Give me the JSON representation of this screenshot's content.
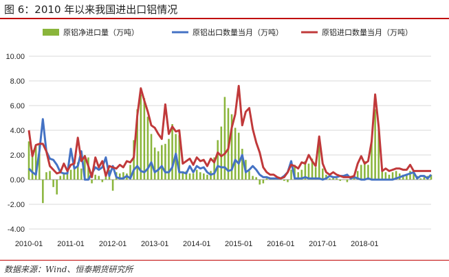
{
  "figure": {
    "title": "图 6：2010 年以来我国进出口铝情况",
    "source": "数据来源：Wind、恒泰期货研究所"
  },
  "chart_data": {
    "type": "bar+line",
    "title": "",
    "xlabel": "",
    "ylabel": "",
    "ylim": [
      -4,
      10
    ],
    "y_ticks": [
      "-4.00",
      "-2.00",
      "0.00",
      "2.00",
      "4.00",
      "6.00",
      "8.00",
      "10.00"
    ],
    "x_ticks": [
      "2010-01",
      "2011-01",
      "2012-01",
      "2013-01",
      "2014-01",
      "2015-01",
      "2016-01",
      "2017-01",
      "2018-01"
    ],
    "grid": true,
    "legend_position": "top",
    "colors": {
      "net": "#8ab53b",
      "export": "#4472c4",
      "import": "#c0393a"
    },
    "series": [
      {
        "name": "原铝净进口量（万吨）",
        "kind": "bar",
        "values": [
          3.1,
          2.4,
          2.7,
          2.8,
          -1.9,
          0.6,
          0.7,
          -0.6,
          -1.2,
          0.3,
          0.5,
          0.6,
          0.8,
          1.0,
          1.4,
          0.9,
          2.0,
          1.8,
          -0.3,
          0.4,
          0.3,
          -0.2,
          0.4,
          0.8,
          -0.9,
          0.6,
          0.5,
          0.6,
          0.5,
          1.2,
          3.2,
          5.7,
          6.9,
          6.6,
          5.1,
          3.7,
          2.6,
          2.3,
          2.8,
          2.9,
          3.3,
          4.5,
          3.7,
          3.6,
          0.6,
          0.7,
          0.5,
          0.5,
          0.8,
          0.6,
          0.5,
          0.4,
          0.7,
          1.8,
          3.2,
          4.3,
          6.7,
          5.8,
          5.3,
          4.2,
          3.8,
          2.5,
          1.6,
          0.7,
          0.3,
          0.2,
          -0.4,
          -0.3,
          0.1,
          0.1,
          0.1,
          0.2,
          0.1,
          -0.1,
          -0.2,
          0.8,
          1.2,
          0.6,
          0.8,
          1.5,
          1.3,
          1.7,
          1.0,
          2.8,
          0.9,
          0.4,
          0.1,
          0.2,
          0.1,
          -0.1,
          0.0,
          -0.2,
          0.3,
          0.3,
          0.7,
          1.2,
          1.5,
          1.2,
          3.1,
          5.7,
          4.4,
          0.7,
          0.6,
          0.4,
          0.6,
          0.7,
          0.5,
          0.4,
          0.4,
          0.7,
          0.5,
          0.3,
          0.1,
          0.2,
          0.3,
          0.4
        ]
      },
      {
        "name": "原铝出口数量当月（万吨）",
        "kind": "line",
        "values": [
          0.9,
          0.6,
          0.4,
          2.3,
          4.9,
          2.3,
          1.7,
          1.6,
          1.2,
          0.6,
          0.5,
          0.5,
          2.5,
          0.9,
          1.1,
          2.3,
          0.0,
          0.0,
          0.5,
          1.0,
          0.8,
          1.0,
          1.8,
          0.3,
          1.1,
          0.2,
          0.1,
          0.1,
          0.3,
          0.1,
          0.8,
          1.1,
          0.7,
          0.6,
          0.9,
          1.4,
          0.6,
          0.8,
          1.1,
          0.6,
          0.6,
          1.0,
          2.1,
          0.6,
          0.6,
          0.5,
          1.1,
          0.6,
          1.1,
          0.9,
          1.0,
          0.6,
          0.4,
          0.5,
          1.1,
          1.0,
          1.0,
          0.7,
          0.8,
          1.6,
          1.3,
          2.0,
          0.6,
          0.8,
          1.1,
          0.8,
          0.4,
          0.2,
          0.2,
          0.1,
          0.1,
          0.1,
          0.1,
          0.3,
          0.6,
          1.5,
          0.1,
          0.1,
          0.1,
          0.2,
          0.1,
          0.1,
          0.1,
          0.1,
          0.0,
          0.1,
          0.3,
          0.2,
          0.2,
          0.3,
          0.3,
          0.4,
          0.1,
          0.2,
          0.1,
          0.0,
          0.0,
          0.1,
          0.0,
          0.0,
          0.0,
          0.0,
          0.0,
          0.0,
          0.0,
          0.1,
          0.2,
          0.3,
          0.4,
          0.5,
          0.6,
          0.1,
          0.3,
          0.3,
          0.1,
          0.4
        ]
      },
      {
        "name": "原铝进口数量当月（万吨）",
        "kind": "line",
        "values": [
          4.0,
          1.9,
          2.8,
          2.9,
          2.9,
          2.3,
          1.1,
          0.8,
          0.5,
          0.6,
          1.3,
          0.7,
          1.2,
          1.3,
          3.4,
          1.5,
          1.9,
          1.1,
          0.2,
          1.8,
          1.0,
          1.5,
          0.3,
          1.1,
          1.0,
          0.9,
          1.2,
          1.0,
          1.5,
          1.4,
          1.8,
          5.2,
          7.4,
          6.4,
          5.5,
          4.4,
          4.2,
          3.7,
          3.3,
          6.1,
          3.7,
          4.3,
          3.9,
          4.0,
          1.3,
          1.5,
          1.7,
          1.2,
          1.8,
          1.5,
          1.6,
          1.1,
          1.7,
          1.4,
          2.2,
          1.9,
          2.1,
          2.5,
          4.2,
          5.3,
          7.6,
          4.4,
          5.5,
          5.8,
          4.1,
          3.0,
          2.2,
          1.0,
          0.6,
          0.4,
          0.4,
          0.2,
          0.1,
          0.2,
          0.6,
          1.2,
          1.1,
          0.9,
          1.4,
          1.3,
          2.0,
          1.5,
          1.1,
          3.5,
          1.3,
          0.6,
          0.4,
          0.6,
          0.4,
          0.3,
          0.2,
          0.2,
          0.2,
          0.3,
          1.3,
          1.9,
          1.3,
          1.5,
          3.1,
          6.9,
          4.3,
          0.7,
          0.9,
          0.7,
          0.8,
          0.9,
          0.9,
          0.8,
          0.8,
          1.2,
          0.7,
          0.7,
          0.7,
          0.7,
          0.7,
          0.7
        ]
      }
    ]
  }
}
